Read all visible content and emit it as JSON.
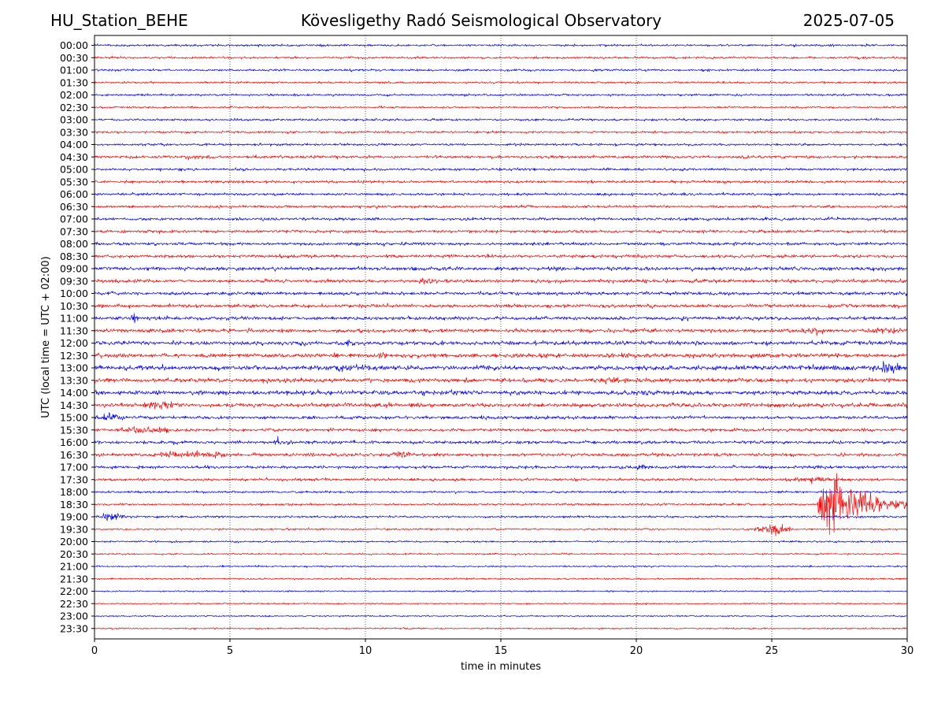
{
  "header": {
    "station": "HU_Station_BEHE",
    "title": "Kövesligethy Radó Seismological Observatory",
    "date": "2025-07-05"
  },
  "chart_data": {
    "type": "line",
    "title": "Kövesligethy Radó Seismological Observatory",
    "xlabel": "time in minutes",
    "ylabel": "UTC (local time = UTC + 02:00)",
    "xlim": [
      0,
      30
    ],
    "xticks": [
      0,
      5,
      10,
      15,
      20,
      25,
      30
    ],
    "grid": "vertical dotted at x ticks",
    "colors": {
      "even_rows": "#0000ff",
      "odd_rows": "#ff0000"
    },
    "rows": [
      {
        "label": "00:00",
        "color": "#0000ff",
        "amp": 1.2,
        "events": []
      },
      {
        "label": "00:30",
        "color": "#ff0000",
        "amp": 1.2,
        "events": []
      },
      {
        "label": "01:00",
        "color": "#0000ff",
        "amp": 1.2,
        "events": []
      },
      {
        "label": "01:30",
        "color": "#ff0000",
        "amp": 1.1,
        "events": []
      },
      {
        "label": "02:00",
        "color": "#0000ff",
        "amp": 1.2,
        "events": []
      },
      {
        "label": "02:30",
        "color": "#ff0000",
        "amp": 1.1,
        "events": []
      },
      {
        "label": "03:00",
        "color": "#0000ff",
        "amp": 1.2,
        "events": []
      },
      {
        "label": "03:30",
        "color": "#ff0000",
        "amp": 1.2,
        "events": []
      },
      {
        "label": "04:00",
        "color": "#0000ff",
        "amp": 1.3,
        "events": []
      },
      {
        "label": "04:30",
        "color": "#ff0000",
        "amp": 1.5,
        "events": [
          {
            "t": 3.0,
            "dur": 1.5,
            "amp": 1.5
          }
        ]
      },
      {
        "label": "05:00",
        "color": "#0000ff",
        "amp": 1.4,
        "events": []
      },
      {
        "label": "05:30",
        "color": "#ff0000",
        "amp": 1.4,
        "events": []
      },
      {
        "label": "06:00",
        "color": "#0000ff",
        "amp": 1.4,
        "events": []
      },
      {
        "label": "06:30",
        "color": "#ff0000",
        "amp": 1.4,
        "events": []
      },
      {
        "label": "07:00",
        "color": "#0000ff",
        "amp": 1.5,
        "events": []
      },
      {
        "label": "07:30",
        "color": "#ff0000",
        "amp": 1.5,
        "events": []
      },
      {
        "label": "08:00",
        "color": "#0000ff",
        "amp": 1.6,
        "events": []
      },
      {
        "label": "08:30",
        "color": "#ff0000",
        "amp": 1.7,
        "events": []
      },
      {
        "label": "09:00",
        "color": "#0000ff",
        "amp": 2.0,
        "events": []
      },
      {
        "label": "09:30",
        "color": "#ff0000",
        "amp": 1.8,
        "events": [
          {
            "t": 11.8,
            "dur": 0.8,
            "amp": 1.4
          }
        ]
      },
      {
        "label": "10:00",
        "color": "#0000ff",
        "amp": 1.8,
        "events": []
      },
      {
        "label": "10:30",
        "color": "#ff0000",
        "amp": 1.8,
        "events": []
      },
      {
        "label": "11:00",
        "color": "#0000ff",
        "amp": 1.9,
        "events": [
          {
            "t": 1.3,
            "dur": 0.3,
            "amp": 3.5
          }
        ]
      },
      {
        "label": "11:30",
        "color": "#ff0000",
        "amp": 2.0,
        "events": [
          {
            "t": 26.0,
            "dur": 1.0,
            "amp": 3.0
          },
          {
            "t": 28.5,
            "dur": 1.5,
            "amp": 2.0
          }
        ]
      },
      {
        "label": "12:00",
        "color": "#0000ff",
        "amp": 2.2,
        "events": [
          {
            "t": 9.3,
            "dur": 0.3,
            "amp": 3.0
          }
        ]
      },
      {
        "label": "12:30",
        "color": "#ff0000",
        "amp": 2.3,
        "events": [
          {
            "t": 10.4,
            "dur": 0.4,
            "amp": 2.5
          }
        ]
      },
      {
        "label": "13:00",
        "color": "#0000ff",
        "amp": 2.5,
        "events": [
          {
            "t": 8.5,
            "dur": 2.0,
            "amp": 1.5
          },
          {
            "t": 28.5,
            "dur": 1.5,
            "amp": 3.0
          }
        ]
      },
      {
        "label": "13:30",
        "color": "#ff0000",
        "amp": 2.2,
        "events": [
          {
            "t": 18.5,
            "dur": 1.0,
            "amp": 2.0
          }
        ]
      },
      {
        "label": "14:00",
        "color": "#0000ff",
        "amp": 2.3,
        "events": [
          {
            "t": 12.5,
            "dur": 1.0,
            "amp": 1.5
          }
        ]
      },
      {
        "label": "14:30",
        "color": "#ff0000",
        "amp": 2.2,
        "events": [
          {
            "t": 1.5,
            "dur": 1.8,
            "amp": 2.5
          }
        ]
      },
      {
        "label": "15:00",
        "color": "#0000ff",
        "amp": 1.8,
        "events": [
          {
            "t": 0.0,
            "dur": 1.0,
            "amp": 4.0
          }
        ]
      },
      {
        "label": "15:30",
        "color": "#ff0000",
        "amp": 1.6,
        "events": [
          {
            "t": 0.8,
            "dur": 2.2,
            "amp": 3.0
          }
        ]
      },
      {
        "label": "16:00",
        "color": "#0000ff",
        "amp": 1.7,
        "events": [
          {
            "t": 6.6,
            "dur": 0.3,
            "amp": 4.0
          }
        ]
      },
      {
        "label": "16:30",
        "color": "#ff0000",
        "amp": 1.8,
        "events": [
          {
            "t": 2.3,
            "dur": 3.0,
            "amp": 3.0
          },
          {
            "t": 10.5,
            "dur": 1.5,
            "amp": 1.5
          }
        ]
      },
      {
        "label": "17:00",
        "color": "#0000ff",
        "amp": 1.6,
        "events": [
          {
            "t": 20.0,
            "dur": 0.5,
            "amp": 2.0
          }
        ]
      },
      {
        "label": "17:30",
        "color": "#ff0000",
        "amp": 1.5,
        "events": [
          {
            "t": 25.5,
            "dur": 2.0,
            "amp": 1.5
          }
        ]
      },
      {
        "label": "18:00",
        "color": "#0000ff",
        "amp": 1.2,
        "events": []
      },
      {
        "label": "18:30",
        "color": "#ff0000",
        "amp": 1.1,
        "events": [
          {
            "t": 26.7,
            "dur": 3.3,
            "amp": 30.0,
            "quake": true
          }
        ]
      },
      {
        "label": "19:00",
        "color": "#0000ff",
        "amp": 1.2,
        "events": [
          {
            "t": 0.0,
            "dur": 1.3,
            "amp": 3.0
          }
        ]
      },
      {
        "label": "19:30",
        "color": "#ff0000",
        "amp": 1.0,
        "events": [
          {
            "t": 24.3,
            "dur": 1.5,
            "amp": 5.0
          }
        ]
      },
      {
        "label": "20:00",
        "color": "#0000ff",
        "amp": 1.0,
        "events": []
      },
      {
        "label": "20:30",
        "color": "#ff0000",
        "amp": 0.9,
        "events": []
      },
      {
        "label": "21:00",
        "color": "#0000ff",
        "amp": 0.9,
        "events": []
      },
      {
        "label": "21:30",
        "color": "#ff0000",
        "amp": 0.9,
        "events": []
      },
      {
        "label": "22:00",
        "color": "#0000ff",
        "amp": 0.8,
        "events": []
      },
      {
        "label": "22:30",
        "color": "#ff0000",
        "amp": 0.8,
        "events": []
      },
      {
        "label": "23:00",
        "color": "#0000ff",
        "amp": 0.8,
        "events": []
      },
      {
        "label": "23:30",
        "color": "#ff0000",
        "amp": 0.8,
        "events": []
      }
    ]
  }
}
